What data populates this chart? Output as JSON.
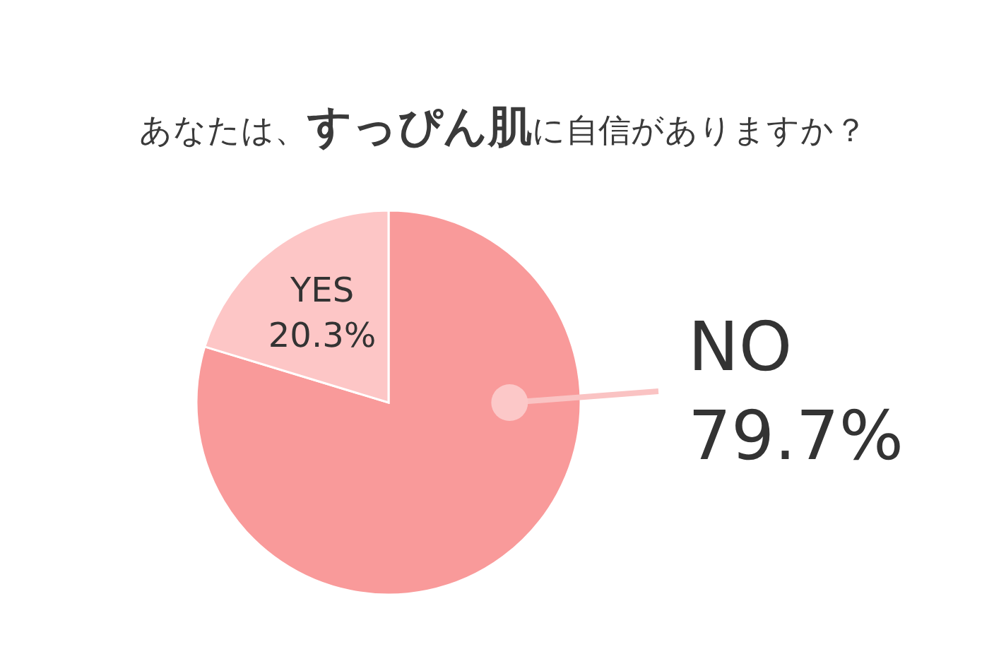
{
  "chart_data": {
    "type": "pie",
    "title": "あなたは、すっぴん肌に自信がありますか？",
    "categories": [
      "NO",
      "YES"
    ],
    "values": [
      79.7,
      20.3
    ],
    "colors": [
      "#f99a9a",
      "#fdc6c6"
    ],
    "value_labels": [
      "79.7%",
      "20.3%"
    ]
  }
}
